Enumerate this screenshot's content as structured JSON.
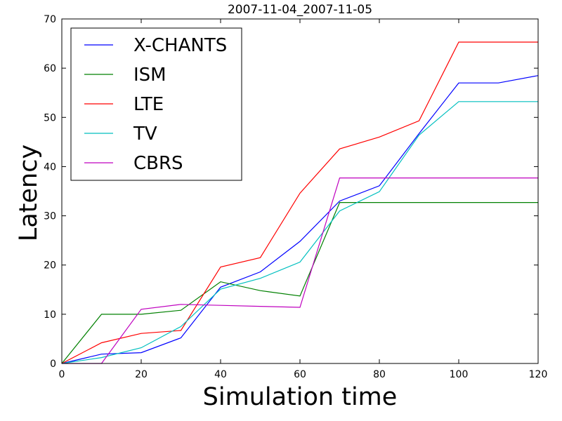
{
  "chart_data": {
    "type": "line",
    "title": "2007-11-04_2007-11-05",
    "xlabel": "Simulation time",
    "ylabel": "Latency",
    "xlim": [
      0,
      120
    ],
    "ylim": [
      0,
      70
    ],
    "xticks": [
      0,
      20,
      40,
      60,
      80,
      100,
      120
    ],
    "yticks": [
      0,
      10,
      20,
      30,
      40,
      50,
      60,
      70
    ],
    "grid": false,
    "legend_position": "top-left",
    "x": [
      0,
      10,
      20,
      30,
      40,
      50,
      60,
      70,
      80,
      90,
      100,
      110,
      120
    ],
    "series": [
      {
        "name": "X-CHANTS",
        "color": "#0000ff",
        "values": [
          0,
          1.9,
          2.2,
          5.2,
          15.5,
          18.6,
          24.8,
          33.0,
          36.1,
          46.7,
          57.0,
          57.0,
          58.5
        ]
      },
      {
        "name": "ISM",
        "color": "#008000",
        "values": [
          0,
          10.0,
          10.0,
          10.8,
          16.6,
          14.8,
          13.7,
          32.7,
          32.7,
          32.7,
          32.7,
          32.7,
          32.7
        ]
      },
      {
        "name": "LTE",
        "color": "#ff0000",
        "values": [
          0,
          4.2,
          6.1,
          6.7,
          19.6,
          21.5,
          34.6,
          43.6,
          46.0,
          49.3,
          65.3,
          65.3,
          65.3
        ]
      },
      {
        "name": "TV",
        "color": "#00bfbf",
        "values": [
          0,
          1.2,
          3.2,
          7.5,
          15.1,
          17.3,
          20.6,
          31.0,
          34.9,
          46.4,
          53.2,
          53.2,
          53.2
        ]
      },
      {
        "name": "CBRS",
        "color": "#bf00bf",
        "values": [
          0,
          0,
          11.0,
          12.0,
          11.8,
          11.6,
          11.4,
          37.7,
          37.7,
          37.7,
          37.7,
          37.7,
          37.7
        ]
      }
    ]
  }
}
